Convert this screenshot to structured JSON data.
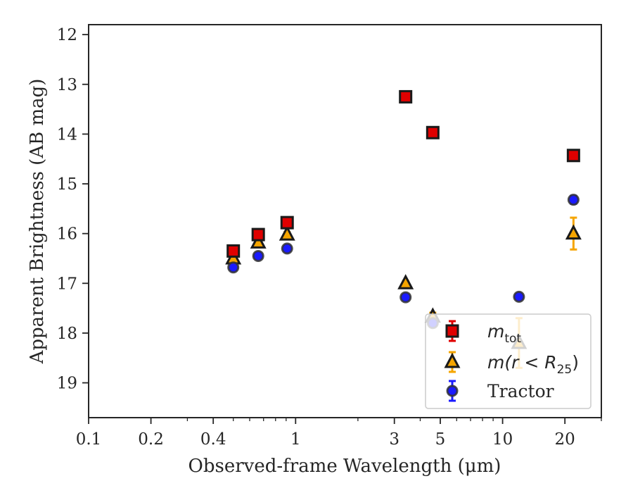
{
  "chart_data": {
    "type": "scatter",
    "title": "",
    "xlabel": "Observed-frame Wavelength (μm)",
    "ylabel": "Apparent Brightness (AB mag)",
    "x_scale": "log",
    "xlim": [
      0.1,
      30
    ],
    "ylim": [
      19.7,
      11.8
    ],
    "y_inverted": true,
    "grid": false,
    "legend_position": "lower-right",
    "x_ticks": [
      {
        "value": 0.1,
        "label": "0.1"
      },
      {
        "value": 0.2,
        "label": "0.2"
      },
      {
        "value": 0.4,
        "label": "0.4"
      },
      {
        "value": 1,
        "label": "1"
      },
      {
        "value": 3,
        "label": "3"
      },
      {
        "value": 5,
        "label": "5"
      },
      {
        "value": 10,
        "label": "10"
      },
      {
        "value": 20,
        "label": "20"
      }
    ],
    "y_ticks": [
      {
        "value": 12,
        "label": "12"
      },
      {
        "value": 13,
        "label": "13"
      },
      {
        "value": 14,
        "label": "14"
      },
      {
        "value": 15,
        "label": "15"
      },
      {
        "value": 16,
        "label": "16"
      },
      {
        "value": 17,
        "label": "17"
      },
      {
        "value": 18,
        "label": "18"
      },
      {
        "value": 19,
        "label": "19"
      }
    ],
    "series": [
      {
        "name": "m_tot",
        "marker": "square",
        "color": "#e00000",
        "error_color": "#e00000",
        "points": [
          {
            "x": 0.5,
            "y": 16.35,
            "err": 0.05
          },
          {
            "x": 0.66,
            "y": 16.02,
            "err": 0.05
          },
          {
            "x": 0.91,
            "y": 15.78,
            "err": 0.05
          },
          {
            "x": 3.4,
            "y": 13.25,
            "err": 0.05
          },
          {
            "x": 4.6,
            "y": 13.97,
            "err": 0.05
          },
          {
            "x": 22,
            "y": 14.43,
            "err": 0.05
          }
        ]
      },
      {
        "name": "m(r < R25)",
        "marker": "triangle",
        "color": "#f5a500",
        "error_color": "#f5a500",
        "points": [
          {
            "x": 0.5,
            "y": 16.5,
            "err": 0.05
          },
          {
            "x": 0.66,
            "y": 16.18,
            "err": 0.05
          },
          {
            "x": 0.91,
            "y": 16.02,
            "err": 0.05
          },
          {
            "x": 3.4,
            "y": 17.0,
            "err": 0.05
          },
          {
            "x": 4.6,
            "y": 17.67,
            "err": 0.08
          },
          {
            "x": 12,
            "y": 18.2,
            "err": 0.5
          },
          {
            "x": 22,
            "y": 16.0,
            "err": 0.32
          }
        ]
      },
      {
        "name": "Tractor",
        "marker": "circle",
        "color": "#1a1aff",
        "error_color": "#1a1aff",
        "points": [
          {
            "x": 0.5,
            "y": 16.68,
            "err": 0.05
          },
          {
            "x": 0.66,
            "y": 16.45,
            "err": 0.05
          },
          {
            "x": 0.91,
            "y": 16.3,
            "err": 0.05
          },
          {
            "x": 3.4,
            "y": 17.28,
            "err": 0.05
          },
          {
            "x": 4.6,
            "y": 17.8,
            "err": 0.05
          },
          {
            "x": 12,
            "y": 17.27,
            "err": 0.05
          },
          {
            "x": 22,
            "y": 15.32,
            "err": 0.08
          }
        ]
      }
    ],
    "legend": [
      {
        "marker": "square",
        "color": "#e00000",
        "main": "m",
        "sub": "tot",
        "style": "math"
      },
      {
        "marker": "triangle",
        "color": "#f5a500",
        "main": "m(r < R",
        "sub": "25",
        "tail": ")",
        "style": "math"
      },
      {
        "marker": "circle",
        "color": "#1a1aff",
        "main": "Tractor",
        "style": "text"
      }
    ]
  }
}
